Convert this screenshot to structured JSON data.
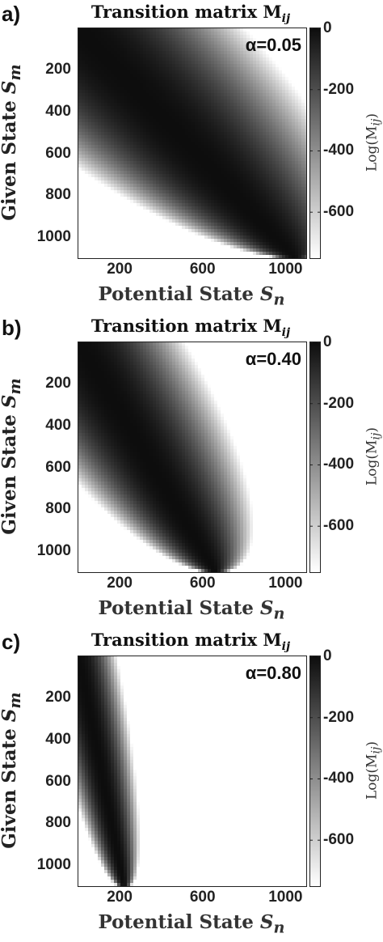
{
  "chart_data": [
    {
      "type": "heatmap",
      "panel_label": "a)",
      "title": "Transition matrix M",
      "title_sub": "ij",
      "annotation": "α=0.05",
      "alpha": 0.05,
      "xlabel": "Potential State",
      "xlabel_var": "S",
      "xlabel_sub": "n",
      "ylabel": "Given State",
      "ylabel_var": "S",
      "ylabel_sub": "m",
      "xlim": [
        1,
        1100
      ],
      "ylim": [
        1,
        1100
      ],
      "y_reversed": true,
      "xticks": [
        "200",
        "600",
        "1000"
      ],
      "xtick_values": [
        200,
        600,
        1000
      ],
      "yticks": [
        "200",
        "400",
        "600",
        "800",
        "1000"
      ],
      "ytick_values": [
        200,
        400,
        600,
        800,
        1000
      ],
      "colorbar": {
        "label": "Log(M",
        "label_sub": "ij",
        "label_close": ")",
        "range": [
          -750,
          0
        ],
        "ticks": [
          "0",
          "-200",
          "-400",
          "-600"
        ],
        "tick_values": [
          0,
          -200,
          -400,
          -600
        ],
        "colormap": "gray-reversed"
      }
    },
    {
      "type": "heatmap",
      "panel_label": "b)",
      "title": "Transition matrix M",
      "title_sub": "ij",
      "annotation": "α=0.40",
      "alpha": 0.4,
      "xlabel": "Potential State",
      "xlabel_var": "S",
      "xlabel_sub": "n",
      "ylabel": "Given State",
      "ylabel_var": "S",
      "ylabel_sub": "m",
      "xlim": [
        1,
        1100
      ],
      "ylim": [
        1,
        1100
      ],
      "y_reversed": true,
      "xticks": [
        "200",
        "600",
        "1000"
      ],
      "xtick_values": [
        200,
        600,
        1000
      ],
      "yticks": [
        "200",
        "400",
        "600",
        "800",
        "1000"
      ],
      "ytick_values": [
        200,
        400,
        600,
        800,
        1000
      ],
      "colorbar": {
        "label": "Log(M",
        "label_sub": "ij",
        "label_close": ")",
        "range": [
          -750,
          0
        ],
        "ticks": [
          "0",
          "-200",
          "-400",
          "-600"
        ],
        "tick_values": [
          0,
          -200,
          -400,
          -600
        ],
        "colormap": "gray-reversed"
      }
    },
    {
      "type": "heatmap",
      "panel_label": "c)",
      "title": "Transition matrix M",
      "title_sub": "ij",
      "annotation": "α=0.80",
      "alpha": 0.8,
      "xlabel": "Potential State",
      "xlabel_var": "S",
      "xlabel_sub": "n",
      "ylabel": "Given State",
      "ylabel_var": "S",
      "ylabel_sub": "m",
      "xlim": [
        1,
        1100
      ],
      "ylim": [
        1,
        1100
      ],
      "y_reversed": true,
      "xticks": [
        "200",
        "600",
        "1000"
      ],
      "xtick_values": [
        200,
        600,
        1000
      ],
      "yticks": [
        "200",
        "400",
        "600",
        "800",
        "1000"
      ],
      "ytick_values": [
        200,
        400,
        600,
        800,
        1000
      ],
      "colorbar": {
        "label": "Log(M",
        "label_sub": "ij",
        "label_close": ")",
        "range": [
          -750,
          0
        ],
        "ticks": [
          "0",
          "-200",
          "-400",
          "-600"
        ],
        "tick_values": [
          0,
          -200,
          -400,
          -600
        ],
        "colormap": "gray-reversed"
      }
    }
  ]
}
